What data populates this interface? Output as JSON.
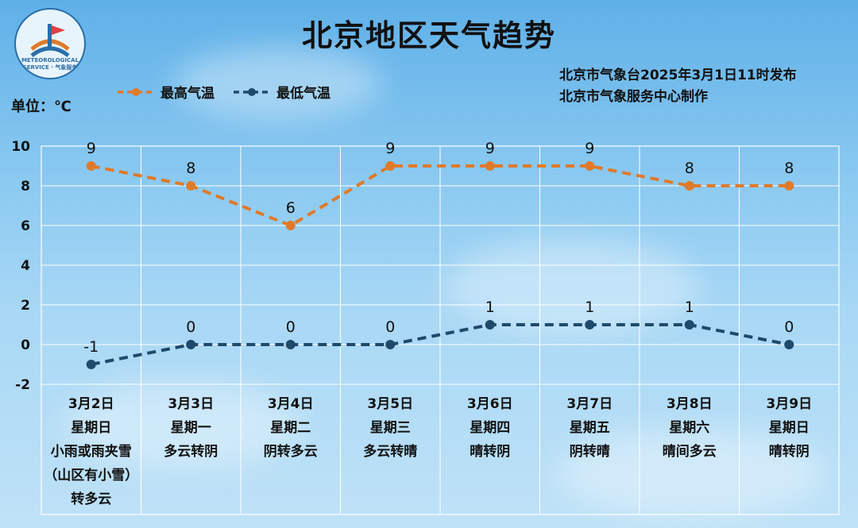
{
  "title": "北京地区天气趋势",
  "publish_line1": "北京市气象台2025年3月1日11时发布",
  "publish_line2": "北京市气象服务中心制作",
  "unit_label": "单位：℃",
  "logo_text": "METEOROLOGICAL SERVICE · 气象服务",
  "colors": {
    "high": "#e07a2a",
    "low": "#1f4a6b",
    "grid": "#ffffff"
  },
  "chart_data": {
    "type": "line",
    "categories": [
      "3月2日",
      "3月3日",
      "3月4日",
      "3月5日",
      "3月6日",
      "3月7日",
      "3月8日",
      "3月9日"
    ],
    "weekdays": [
      "星期日",
      "星期一",
      "星期二",
      "星期三",
      "星期四",
      "星期五",
      "星期六",
      "星期日"
    ],
    "weather": [
      [
        "小雨或雨夹雪",
        "（山区有小雪）",
        "转多云"
      ],
      [
        "多云转阴"
      ],
      [
        "阴转多云"
      ],
      [
        "多云转晴"
      ],
      [
        "晴转阴"
      ],
      [
        "阴转晴"
      ],
      [
        "晴间多云"
      ],
      [
        "晴转阴"
      ]
    ],
    "series": [
      {
        "name": "最高气温",
        "values": [
          9,
          8,
          6,
          9,
          9,
          9,
          8,
          8
        ]
      },
      {
        "name": "最低气温",
        "values": [
          -1,
          0,
          0,
          0,
          1,
          1,
          1,
          0
        ]
      }
    ],
    "ylim": [
      -2,
      10
    ],
    "yticks": [
      -2,
      0,
      2,
      4,
      6,
      8,
      10
    ],
    "grid": true,
    "legend": "top-left"
  }
}
